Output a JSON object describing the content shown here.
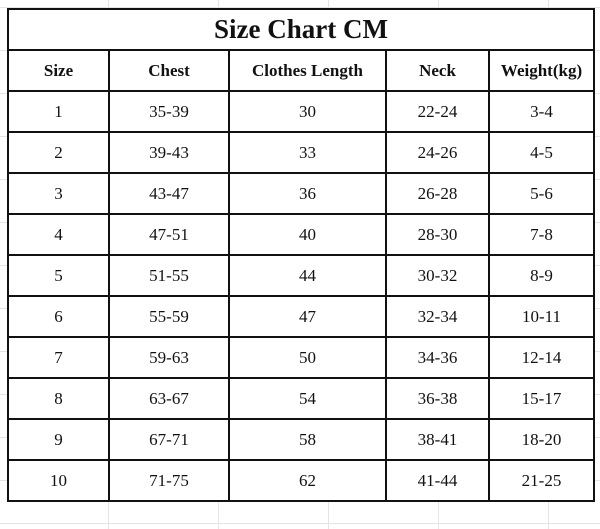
{
  "title": "Size Chart CM",
  "headers": [
    "Size",
    "Chest",
    "Clothes Length",
    "Neck",
    "Weight(kg)"
  ],
  "rows": [
    [
      "1",
      "35-39",
      "30",
      "22-24",
      "3-4"
    ],
    [
      "2",
      "39-43",
      "33",
      "24-26",
      "4-5"
    ],
    [
      "3",
      "43-47",
      "36",
      "26-28",
      "5-6"
    ],
    [
      "4",
      "47-51",
      "40",
      "28-30",
      "7-8"
    ],
    [
      "5",
      "51-55",
      "44",
      "30-32",
      "8-9"
    ],
    [
      "6",
      "55-59",
      "47",
      "32-34",
      "10-11"
    ],
    [
      "7",
      "59-63",
      "50",
      "34-36",
      "12-14"
    ],
    [
      "8",
      "63-67",
      "54",
      "36-38",
      "15-17"
    ],
    [
      "9",
      "67-71",
      "58",
      "38-41",
      "18-20"
    ],
    [
      "10",
      "71-75",
      "62",
      "41-44",
      "21-25"
    ]
  ]
}
